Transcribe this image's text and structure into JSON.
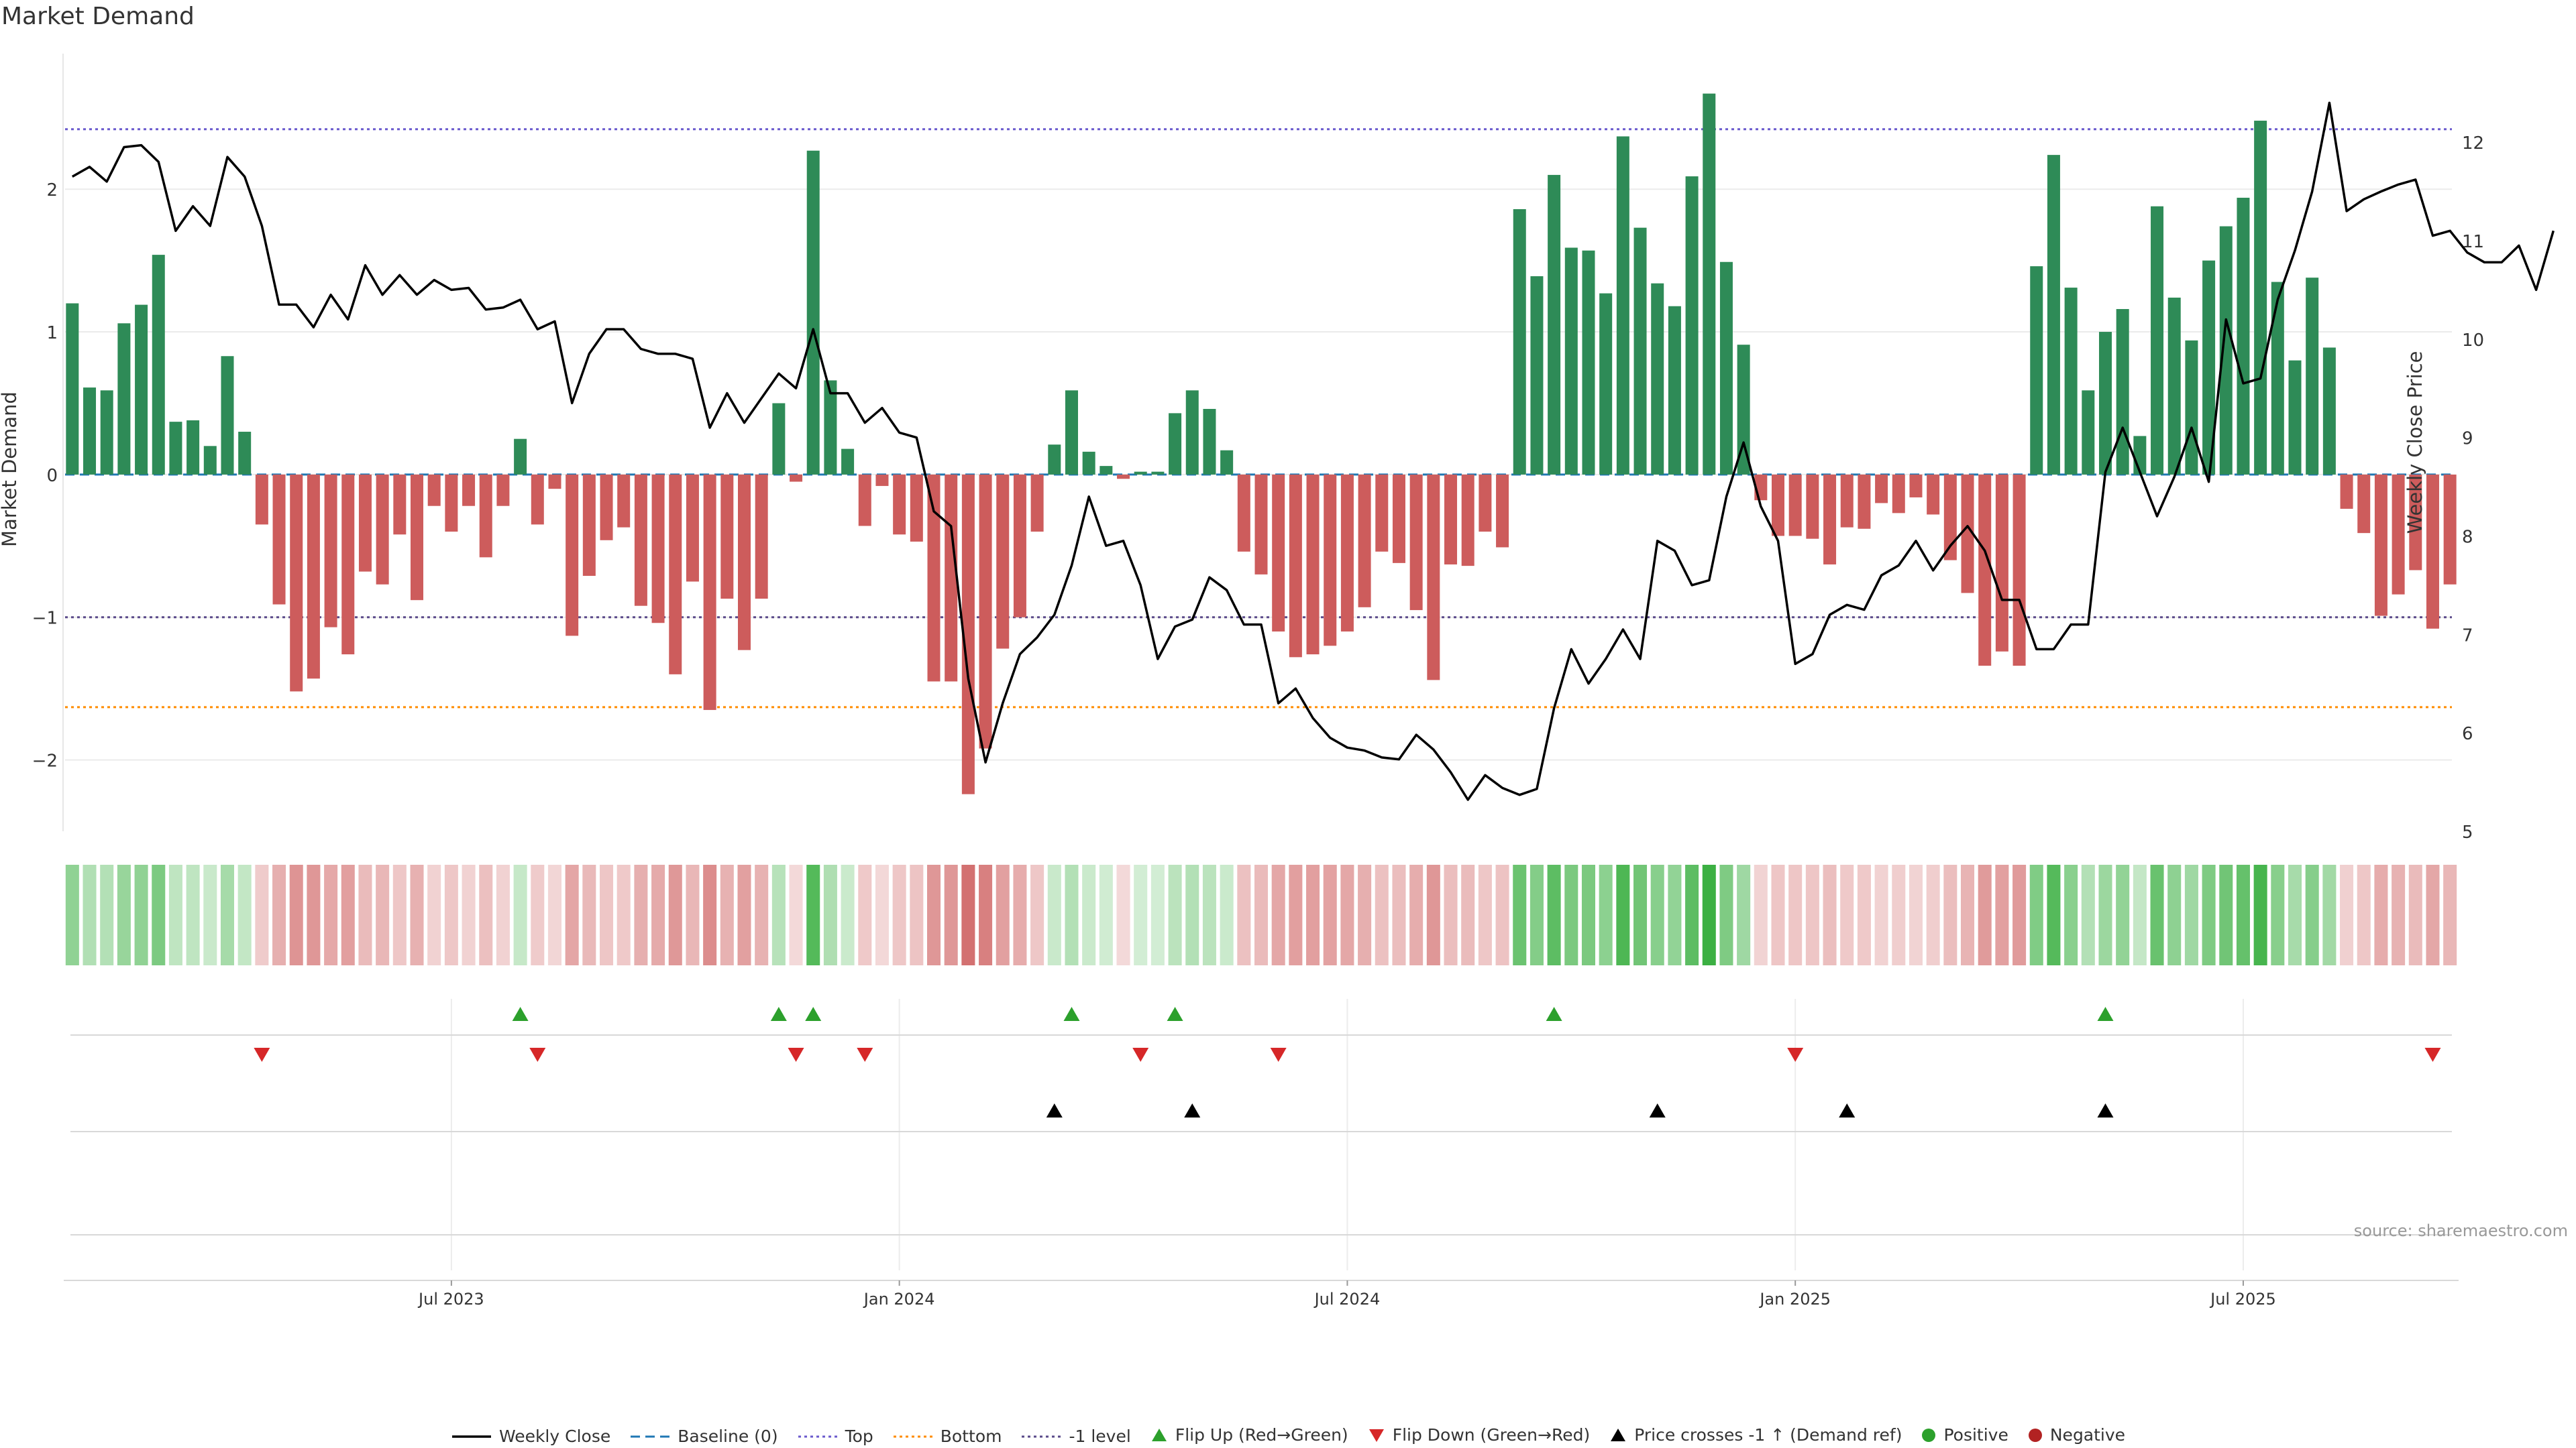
{
  "chart_data": {
    "type": "bar",
    "title": "Market Demand",
    "source": "source: sharemaestro.com",
    "ylabel_left": "Market Demand",
    "ylabel_right": "Weekly Close Price",
    "ylim_left": [
      -2.5,
      2.95
    ],
    "ylim_right": [
      5,
      12.9
    ],
    "yticks_left": [
      {
        "v": 2,
        "t": "2"
      },
      {
        "v": 1,
        "t": "1"
      },
      {
        "v": 0,
        "t": "0"
      },
      {
        "v": -1,
        "t": "−1"
      },
      {
        "v": -2,
        "t": "−2"
      }
    ],
    "yticks_right": [
      {
        "v": 12,
        "t": "12"
      },
      {
        "v": 11,
        "t": "11"
      },
      {
        "v": 10,
        "t": "10"
      },
      {
        "v": 9,
        "t": "9"
      },
      {
        "v": 8,
        "t": "8"
      },
      {
        "v": 7,
        "t": "7"
      },
      {
        "v": 6,
        "t": "6"
      },
      {
        "v": 5,
        "t": "5"
      }
    ],
    "xticks": [
      {
        "week": 22,
        "label": "Jul 2023"
      },
      {
        "week": 48,
        "label": "Jan 2024"
      },
      {
        "week": 74,
        "label": "Jul 2024"
      },
      {
        "week": 100,
        "label": "Jan 2025"
      },
      {
        "week": 126,
        "label": "Jul 2025"
      }
    ],
    "reference_lines": {
      "top": 2.42,
      "bottom": -1.63,
      "minus_one": -1.0,
      "baseline": 0
    },
    "demand": [
      1.2,
      0.61,
      0.59,
      1.06,
      1.19,
      1.54,
      0.37,
      0.38,
      0.2,
      0.83,
      0.3,
      -0.35,
      -0.91,
      -1.52,
      -1.43,
      -1.07,
      -1.26,
      -0.68,
      -0.77,
      -0.42,
      -0.88,
      -0.22,
      -0.4,
      -0.22,
      -0.58,
      -0.22,
      0.25,
      -0.35,
      -0.1,
      -1.13,
      -0.71,
      -0.46,
      -0.37,
      -0.92,
      -1.04,
      -1.4,
      -0.75,
      -1.65,
      -0.87,
      -1.23,
      -0.87,
      0.5,
      -0.05,
      2.27,
      0.66,
      0.18,
      -0.36,
      -0.08,
      -0.42,
      -0.47,
      -1.45,
      -1.45,
      -2.24,
      -1.92,
      -1.22,
      -1.0,
      -0.4,
      0.21,
      0.59,
      0.16,
      0.06,
      -0.03,
      0.02,
      0.02,
      0.43,
      0.59,
      0.46,
      0.17,
      -0.54,
      -0.7,
      -1.1,
      -1.28,
      -1.26,
      -1.2,
      -1.1,
      -0.93,
      -0.54,
      -0.62,
      -0.95,
      -1.44,
      -0.63,
      -0.64,
      -0.4,
      -0.51,
      1.86,
      1.39,
      2.1,
      1.59,
      1.57,
      1.27,
      2.37,
      1.73,
      1.34,
      1.18,
      2.09,
      2.67,
      1.49,
      0.91,
      -0.18,
      -0.43,
      -0.43,
      -0.45,
      -0.63,
      -0.37,
      -0.38,
      -0.2,
      -0.27,
      -0.16,
      -0.28,
      -0.6,
      -0.83,
      -1.34,
      -1.24,
      -1.34,
      1.46,
      2.24,
      1.31,
      0.59,
      1.0,
      1.16,
      0.27,
      1.88,
      1.24,
      0.94,
      1.5,
      1.74,
      1.94,
      2.48,
      1.35,
      0.8,
      1.38,
      0.89,
      -0.24,
      -0.41,
      -0.99,
      -0.84,
      -0.67,
      -1.08,
      -0.77
    ],
    "close": [
      11.65,
      11.75,
      11.6,
      11.95,
      11.97,
      11.8,
      11.1,
      11.35,
      11.15,
      11.85,
      11.65,
      11.15,
      10.35,
      10.35,
      10.12,
      10.45,
      10.2,
      10.75,
      10.45,
      10.65,
      10.45,
      10.6,
      10.5,
      10.52,
      10.3,
      10.32,
      10.4,
      10.1,
      10.18,
      9.35,
      9.85,
      10.1,
      10.1,
      9.9,
      9.85,
      9.85,
      9.8,
      9.1,
      9.45,
      9.15,
      9.4,
      9.65,
      9.5,
      10.1,
      9.45,
      9.45,
      9.15,
      9.3,
      9.05,
      9.0,
      8.25,
      8.1,
      6.55,
      5.7,
      6.3,
      6.8,
      6.97,
      7.2,
      7.7,
      8.4,
      7.9,
      7.95,
      7.5,
      6.75,
      7.08,
      7.15,
      7.58,
      7.45,
      7.1,
      7.1,
      6.3,
      6.45,
      6.15,
      5.95,
      5.85,
      5.82,
      5.75,
      5.73,
      5.98,
      5.83,
      5.6,
      5.32,
      5.57,
      5.44,
      5.37,
      5.43,
      6.25,
      6.85,
      6.5,
      6.75,
      7.05,
      6.75,
      7.95,
      7.85,
      7.5,
      7.55,
      8.4,
      8.95,
      8.3,
      7.95,
      6.7,
      6.8,
      7.2,
      7.3,
      7.25,
      7.6,
      7.7,
      7.95,
      7.65,
      7.9,
      8.1,
      7.85,
      7.35,
      7.35,
      6.85,
      6.85,
      7.1,
      7.1,
      8.65,
      9.1,
      8.65,
      8.2,
      8.6,
      9.1,
      8.55,
      10.2,
      9.55,
      9.6,
      10.4,
      10.9,
      11.5,
      12.4,
      11.3,
      11.42,
      11.5,
      11.57,
      11.62,
      11.05,
      11.1,
      10.88,
      10.78,
      10.78,
      10.95,
      10.5,
      11.1
    ],
    "flip_up_weeks": [
      26,
      41,
      43,
      58,
      64,
      86,
      118
    ],
    "flip_down_weeks": [
      11,
      27,
      42,
      46,
      62,
      70,
      100,
      137
    ],
    "price_cross_weeks": [
      57,
      65,
      92,
      103,
      118
    ],
    "legend": [
      {
        "key": "weekly_close",
        "label": "Weekly Close",
        "color": "#000000"
      },
      {
        "key": "baseline",
        "label": "Baseline (0)",
        "color": "#1f77b4"
      },
      {
        "key": "top",
        "label": "Top",
        "color": "#6a5acd"
      },
      {
        "key": "bottom",
        "label": "Bottom",
        "color": "#ff8c00"
      },
      {
        "key": "minus_one",
        "label": "-1 level",
        "color": "#5a4a8a"
      },
      {
        "key": "flip_up",
        "label": "Flip Up (Red→Green)",
        "color": "#2ca02c"
      },
      {
        "key": "flip_down",
        "label": "Flip Down (Green→Red)",
        "color": "#d62728"
      },
      {
        "key": "price_cross",
        "label": "Price crosses -1 ↑ (Demand ref)",
        "color": "#000000"
      },
      {
        "key": "positive",
        "label": "Positive",
        "color": "#2ca02c"
      },
      {
        "key": "negative",
        "label": "Negative",
        "color": "#b22222"
      }
    ],
    "colors": {
      "positive_bar": "#2e8b57",
      "negative_bar": "#cd5c5c",
      "heat_positive": "#3cb043",
      "heat_negative": "#cd5c5c"
    }
  }
}
